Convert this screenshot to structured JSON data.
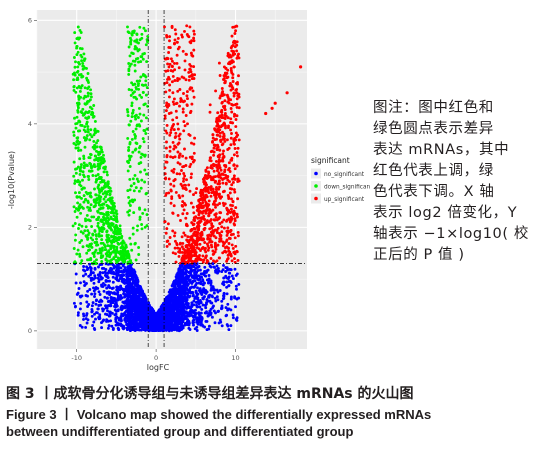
{
  "chart_data": {
    "type": "scatter",
    "xlabel": "logFC",
    "ylabel": "-log10(Pvalue)",
    "xlim": [
      -15,
      19
    ],
    "ylim": [
      -0.35,
      6.2
    ],
    "xticks": [
      -10,
      0,
      10
    ],
    "yticks": [
      0,
      2,
      4,
      6
    ],
    "grid": true,
    "thresholds": {
      "logfc": [
        -1,
        1
      ],
      "pvalue_neglog10": 1.3
    },
    "legend": {
      "title": "significant",
      "position": "right",
      "entries": [
        {
          "name": "no_significant",
          "color": "#0000ff"
        },
        {
          "name": "down_significant",
          "color": "#00ee00"
        },
        {
          "name": "up_significant",
          "color": "#ff0000"
        }
      ]
    },
    "series": [
      {
        "name": "no_significant",
        "color": "#0000ff",
        "region": "|logFC|<1 or -log10(P)<1.3",
        "x_range": [
          -10.5,
          10.5
        ],
        "y_range": [
          0,
          1.3
        ]
      },
      {
        "name": "down_significant",
        "color": "#00ee00",
        "region": "logFC<-1 and -log10(P)>1.3",
        "x_range": [
          -11,
          -1
        ],
        "y_range": [
          1.3,
          5.9
        ]
      },
      {
        "name": "up_significant",
        "color": "#ff0000",
        "region": "logFC>1 and -log10(P)>1.3",
        "x_range": [
          1,
          18
        ],
        "y_range": [
          1.3,
          5.9
        ]
      }
    ],
    "outliers": [
      {
        "x": 18.2,
        "y": 5.1,
        "series": "up_significant"
      },
      {
        "x": 16.5,
        "y": 4.6,
        "series": "up_significant"
      },
      {
        "x": 14.6,
        "y": 4.3,
        "series": "up_significant"
      },
      {
        "x": 13.8,
        "y": 4.2,
        "series": "up_significant"
      },
      {
        "x": 15.0,
        "y": 4.4,
        "series": "up_significant"
      },
      {
        "x": 9.8,
        "y": 3.2,
        "series": "up_significant"
      }
    ]
  },
  "side_note": {
    "lines": [
      "图注：图中红色和",
      "绿色圆点表示差异",
      "表达 mRNAs，其中",
      "红色代表上调，绿",
      "色代表下调。X 轴",
      "表示 log2 倍变化，Y",
      "轴表示 −1×log10( 校",
      "正后的 P 值 )"
    ]
  },
  "caption": {
    "cn": "图 3 丨成软骨分化诱导组与未诱导组差异表达 mRNAs 的火山图",
    "en_line1": "Figure 3 丨 Volcano map showed the differentially expressed mRNAs",
    "en_line2": "between undifferentiated group and differentiated group"
  }
}
